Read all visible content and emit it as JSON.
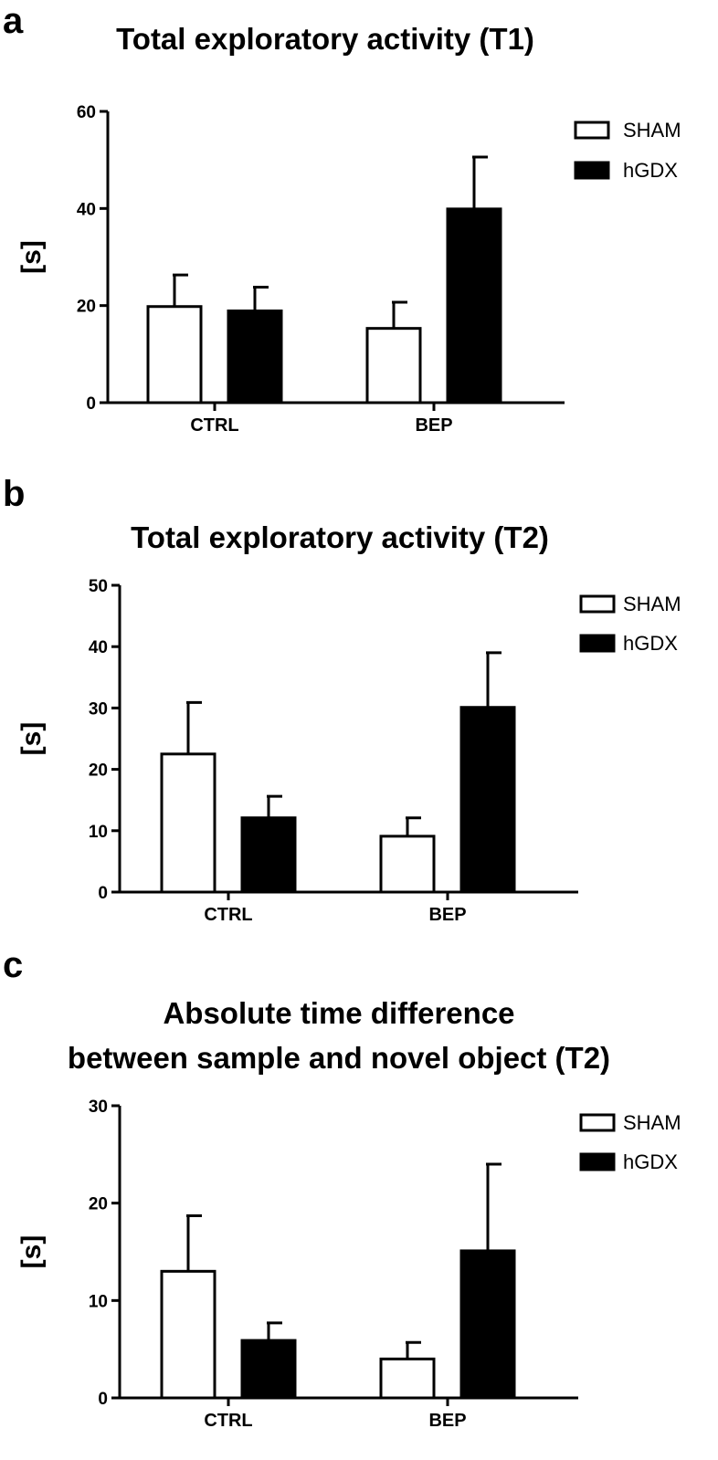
{
  "chart_data": [
    {
      "type": "bar",
      "panel": "a",
      "title": [
        "Total exploratory activity (T1)"
      ],
      "ylabel": "[s]",
      "xlabel": "",
      "ylim": [
        0,
        60
      ],
      "yticks": [
        0,
        20,
        40,
        60
      ],
      "categories": [
        "CTRL",
        "BEP"
      ],
      "legend_position": "top-right",
      "series": [
        {
          "name": "SHAM",
          "fill": "#ffffff",
          "values": [
            19.8,
            15.3
          ],
          "errors": [
            6.5,
            5.4
          ]
        },
        {
          "name": "hGDX",
          "fill": "#000000",
          "values": [
            18.9,
            39.9
          ],
          "errors": [
            4.9,
            10.7
          ]
        }
      ]
    },
    {
      "type": "bar",
      "panel": "b",
      "title": [
        "Total exploratory activity (T2)"
      ],
      "ylabel": "[s]",
      "xlabel": "",
      "ylim": [
        0,
        50
      ],
      "yticks": [
        0,
        10,
        20,
        30,
        40,
        50
      ],
      "categories": [
        "CTRL",
        "BEP"
      ],
      "legend_position": "top-right",
      "series": [
        {
          "name": "SHAM",
          "fill": "#ffffff",
          "values": [
            22.5,
            9.1
          ],
          "errors": [
            8.4,
            3.0
          ]
        },
        {
          "name": "hGDX",
          "fill": "#000000",
          "values": [
            12.1,
            30.1
          ],
          "errors": [
            3.5,
            8.9
          ]
        }
      ]
    },
    {
      "type": "bar",
      "panel": "c",
      "title": [
        "Absolute time difference",
        "between sample and novel object (T2)"
      ],
      "ylabel": "[s]",
      "xlabel": "",
      "ylim": [
        0,
        30
      ],
      "yticks": [
        0,
        10,
        20,
        30
      ],
      "categories": [
        "CTRL",
        "BEP"
      ],
      "legend_position": "top-right",
      "series": [
        {
          "name": "SHAM",
          "fill": "#ffffff",
          "values": [
            13.0,
            4.0
          ],
          "errors": [
            5.7,
            1.7
          ]
        },
        {
          "name": "hGDX",
          "fill": "#000000",
          "values": [
            5.9,
            15.1
          ],
          "errors": [
            1.8,
            8.9
          ]
        }
      ]
    }
  ]
}
